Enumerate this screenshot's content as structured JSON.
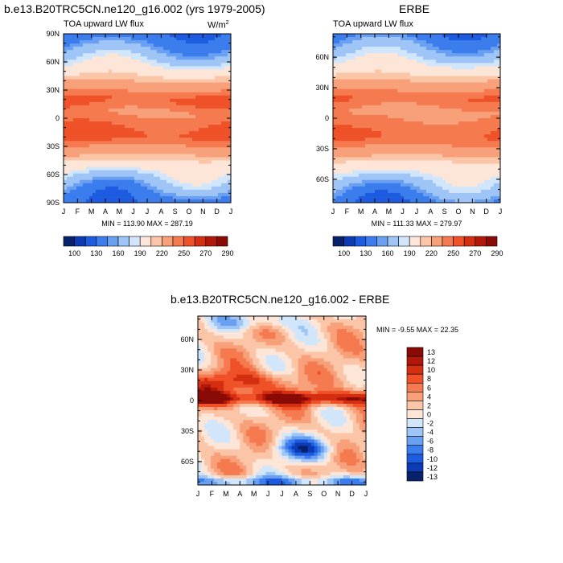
{
  "colors": {
    "full_scale": [
      "#08216b",
      "#0c3bb3",
      "#1d5be0",
      "#3b7ded",
      "#6aa0f2",
      "#9fc5f7",
      "#d2e6fb",
      "#fde6d7",
      "#fbc5a8",
      "#f8a079",
      "#f57a4f",
      "#ef5128",
      "#d42f10",
      "#b2180a",
      "#8a0a06"
    ],
    "diff_scale": [
      "#08216b",
      "#0c3bb3",
      "#1d5be0",
      "#3b7ded",
      "#6aa0f2",
      "#9fc5f7",
      "#d2e6fb",
      "#fde6d7",
      "#fbc5a8",
      "#f8a079",
      "#f57a4f",
      "#ef5128",
      "#d42f10",
      "#b2180a",
      "#8a0a06"
    ]
  },
  "chart_data": [
    {
      "type": "heatmap",
      "title": "b.e13.B20TRC5CN.ne120_g16.002 (yrs 1979-2005)",
      "left_label": "TOA upward LW flux",
      "unit_label": "W/m",
      "unit_sup": "2",
      "x_ticks": [
        "J",
        "F",
        "M",
        "A",
        "M",
        "J",
        "J",
        "A",
        "S",
        "O",
        "N",
        "D",
        "J"
      ],
      "y_ticks": [
        "90N",
        "60N",
        "30N",
        "0",
        "30S",
        "60S",
        "90S"
      ],
      "y_range": [
        -90,
        90
      ],
      "min_max": "MIN = 113.90 MAX = 287.19",
      "colorbar_labels": [
        "100",
        "130",
        "160",
        "190",
        "220",
        "250",
        "270",
        "290"
      ],
      "colorbar_levels": 15
    },
    {
      "type": "heatmap",
      "title": "ERBE",
      "left_label": "TOA upward LW flux",
      "x_ticks": [
        "J",
        "F",
        "M",
        "A",
        "M",
        "J",
        "J",
        "A",
        "S",
        "O",
        "N",
        "D",
        "J"
      ],
      "y_ticks": [
        "60N",
        "30N",
        "0",
        "30S",
        "60S"
      ],
      "y_range": [
        -83,
        83
      ],
      "min_max": "MIN = 111.33 MAX = 279.97",
      "colorbar_labels": [
        "100",
        "130",
        "160",
        "190",
        "220",
        "250",
        "270",
        "290"
      ],
      "colorbar_levels": 15
    },
    {
      "type": "heatmap",
      "title": "b.e13.B20TRC5CN.ne120_g16.002 - ERBE",
      "x_ticks": [
        "J",
        "F",
        "M",
        "A",
        "M",
        "J",
        "J",
        "A",
        "S",
        "O",
        "N",
        "D",
        "J"
      ],
      "y_ticks": [
        "60N",
        "30N",
        "0",
        "30S",
        "60S"
      ],
      "y_range": [
        -83,
        83
      ],
      "min_max": "MIN =  -9.55 MAX =  22.35",
      "colorbar_labels": [
        "13",
        "12",
        "10",
        "8",
        "6",
        "4",
        "2",
        "0",
        "-2",
        "-4",
        "-6",
        "-8",
        "-10",
        "-12",
        "-13"
      ],
      "colorbar_levels": 15
    }
  ]
}
